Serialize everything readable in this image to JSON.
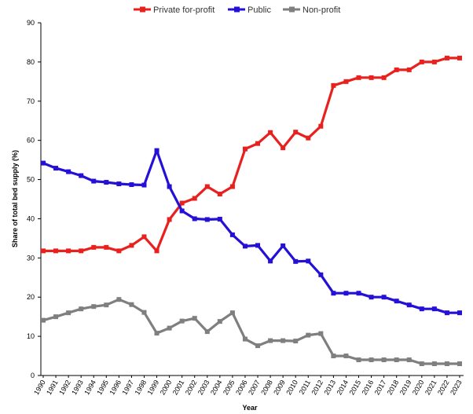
{
  "chart_data": {
    "type": "line",
    "xlabel": "Year",
    "ylabel": "Share of total bed supply (%)",
    "ylim": [
      0,
      90
    ],
    "yticks": [
      0,
      10,
      20,
      30,
      40,
      50,
      60,
      70,
      80,
      90
    ],
    "grid": false,
    "legend_position": "top-center",
    "x": [
      "1990",
      "1991",
      "1992",
      "1993",
      "1994",
      "1995",
      "1996",
      "1997",
      "1998",
      "1999",
      "2000",
      "2001",
      "2002",
      "2003",
      "2004",
      "2005",
      "2006",
      "2007",
      "2008",
      "2009",
      "2010",
      "2011",
      "2012",
      "2013",
      "2014",
      "2015",
      "2016",
      "2017",
      "2018",
      "2019",
      "2020",
      "2021",
      "2022",
      "2023"
    ],
    "series": [
      {
        "name": "Private for-profit",
        "color": "#e8201e",
        "values": [
          31.8,
          31.8,
          31.8,
          31.8,
          32.7,
          32.7,
          31.8,
          33.2,
          35.4,
          31.8,
          39.8,
          44.0,
          45.2,
          48.2,
          46.3,
          48.2,
          57.8,
          59.2,
          62.0,
          58.1,
          62.1,
          60.6,
          63.6,
          74.0,
          75.0,
          76.0,
          76.0,
          76.0,
          78.0,
          78.0,
          80.0,
          80.0,
          81.0,
          81.0
        ]
      },
      {
        "name": "Public",
        "color": "#2410d6",
        "values": [
          54.2,
          52.9,
          52.0,
          51.0,
          49.6,
          49.3,
          48.9,
          48.7,
          48.6,
          57.4,
          48.2,
          42.0,
          40.0,
          39.8,
          39.9,
          35.9,
          33.0,
          33.2,
          29.2,
          33.1,
          29.1,
          29.2,
          25.7,
          21.0,
          21.0,
          21.0,
          20.0,
          20.0,
          19.0,
          18.0,
          17.0,
          17.0,
          16.0,
          16.0
        ]
      },
      {
        "name": "Non-profit",
        "color": "#7f7f7f",
        "values": [
          14.1,
          15.0,
          16.0,
          17.0,
          17.6,
          18.0,
          19.4,
          18.1,
          16.1,
          10.8,
          12.1,
          13.9,
          14.6,
          11.2,
          13.8,
          16.0,
          9.3,
          7.6,
          8.9,
          8.9,
          8.8,
          10.3,
          10.7,
          5.0,
          5.0,
          4.0,
          4.0,
          4.0,
          4.0,
          4.0,
          3.0,
          3.0,
          3.0,
          3.0
        ]
      }
    ]
  }
}
